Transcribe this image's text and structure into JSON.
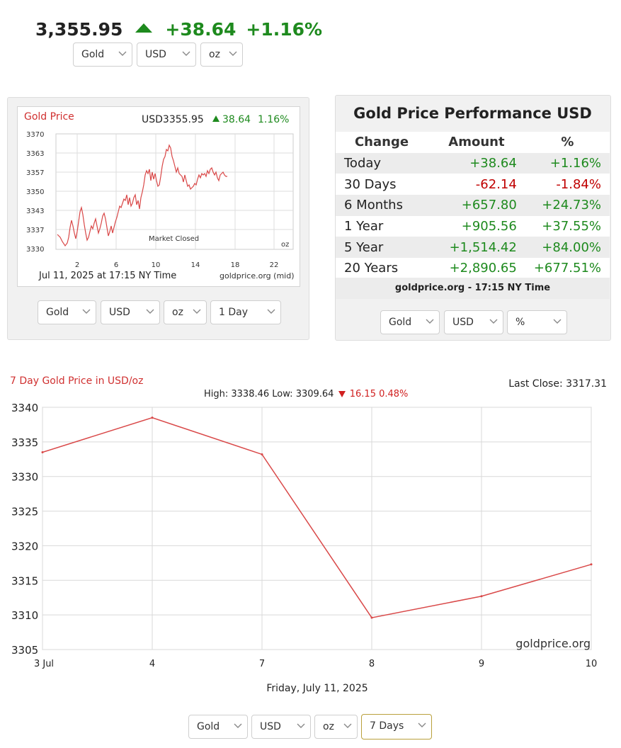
{
  "ticker": {
    "price": "3,355.95",
    "change": "+38.64",
    "percent": "+1.16%",
    "direction_icon": "triangle-up-icon",
    "up_color": "#1e8a1e"
  },
  "top_selects": {
    "metal": "Gold",
    "currency": "USD",
    "unit": "oz"
  },
  "mini_chart": {
    "title": "Gold Price",
    "price_label": "USD3355.95",
    "change_label": "38.64",
    "percent_label": "1.16%",
    "status": "Market Closed",
    "unit": "oz",
    "date_label": "Jul 11, 2025 at 17:15 NY Time",
    "source": "goldprice.org (mid)",
    "y_ticks": [
      "3370",
      "3363",
      "3357",
      "3350",
      "3343",
      "3337",
      "3330"
    ],
    "x_ticks": [
      "2",
      "6",
      "10",
      "14",
      "18",
      "22"
    ],
    "selects": {
      "metal": "Gold",
      "currency": "USD",
      "unit": "oz",
      "range": "1 Day"
    }
  },
  "performance": {
    "title": "Gold Price Performance USD",
    "headers": [
      "Change",
      "Amount",
      "%"
    ],
    "rows": [
      {
        "period": "Today",
        "amount": "+38.64",
        "percent": "+1.16%",
        "trend": "pos"
      },
      {
        "period": "30 Days",
        "amount": "-62.14",
        "percent": "-1.84%",
        "trend": "neg"
      },
      {
        "period": "6 Months",
        "amount": "+657.80",
        "percent": "+24.73%",
        "trend": "pos"
      },
      {
        "period": "1 Year",
        "amount": "+905.56",
        "percent": "+37.55%",
        "trend": "pos"
      },
      {
        "period": "5 Year",
        "amount": "+1,514.42",
        "percent": "+84.00%",
        "trend": "pos"
      },
      {
        "period": "20 Years",
        "amount": "+2,890.65",
        "percent": "+677.51%",
        "trend": "pos"
      }
    ],
    "footer": "goldprice.org - 17:15 NY Time",
    "selects": {
      "metal": "Gold",
      "currency": "USD",
      "unit": "%"
    }
  },
  "big_chart_header": {
    "title": "7 Day Gold Price in USD/oz",
    "high_label": "High: 3338.46",
    "low_label": "Low: 3309.64",
    "change": "16.15",
    "percent": "0.48%",
    "last_close": "Last Close: 3317.31"
  },
  "chart_data": {
    "type": "line",
    "title": "7 Day Gold Price in USD/oz",
    "x": [
      "3 Jul",
      "4",
      "7",
      "8",
      "9",
      "10"
    ],
    "series": [
      {
        "name": "Gold (USD/oz)",
        "values": [
          3333.5,
          3338.5,
          3333.2,
          3309.6,
          3312.7,
          3317.3
        ]
      }
    ],
    "xlabel": "Friday, July 11, 2025",
    "ylabel": "",
    "ylim": [
      3305,
      3340
    ],
    "y_ticks": [
      3340,
      3335,
      3330,
      3325,
      3320,
      3315,
      3310,
      3305
    ],
    "watermark": "goldprice.org",
    "line_color": "#d94848",
    "grid": true
  },
  "bottom_selects": {
    "metal": "Gold",
    "currency": "USD",
    "unit": "oz",
    "range": "7 Days"
  }
}
